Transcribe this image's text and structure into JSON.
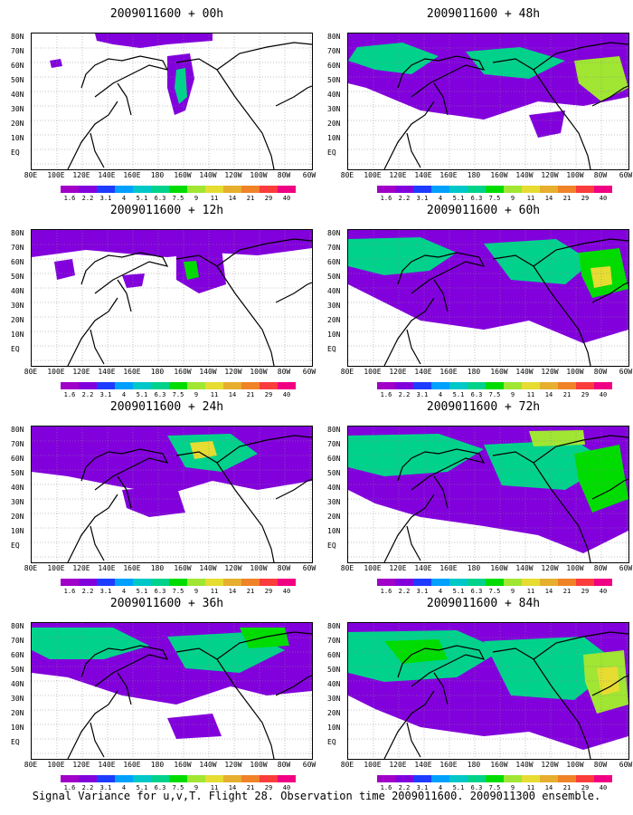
{
  "panels": [
    {
      "title": "2009011600 + 00h",
      "lead": "00h"
    },
    {
      "title": "2009011600 + 48h",
      "lead": "48h"
    },
    {
      "title": "2009011600 + 12h",
      "lead": "12h"
    },
    {
      "title": "2009011600 + 60h",
      "lead": "60h"
    },
    {
      "title": "2009011600 + 24h",
      "lead": "24h"
    },
    {
      "title": "2009011600 + 72h",
      "lead": "72h"
    },
    {
      "title": "2009011600 + 36h",
      "lead": "36h"
    },
    {
      "title": "2009011600 + 84h",
      "lead": "84h"
    }
  ],
  "axes": {
    "lat_labels": [
      "80N",
      "70N",
      "60N",
      "50N",
      "40N",
      "30N",
      "20N",
      "10N",
      "EQ"
    ],
    "lon_labels": [
      "80E",
      "100E",
      "120E",
      "140E",
      "160E",
      "180",
      "160W",
      "140W",
      "120W",
      "100W",
      "80W",
      "60W"
    ]
  },
  "colorbar": {
    "labels": [
      "1.6",
      "2.2",
      "3.1",
      "4",
      "5.1",
      "6.3",
      "7.5",
      "9",
      "11",
      "14",
      "21",
      "29",
      "40"
    ],
    "colors": [
      "#a000c8",
      "#8200dc",
      "#1e3cff",
      "#00a0ff",
      "#00c8c8",
      "#00d28c",
      "#00dc00",
      "#a0e632",
      "#e6dc32",
      "#e6af2d",
      "#f08228",
      "#fa3c3c",
      "#f00082"
    ]
  },
  "caption": "Signal Variance for u,v,T. Flight 28. Observation time 2009011600. 2009011300 ensemble."
}
